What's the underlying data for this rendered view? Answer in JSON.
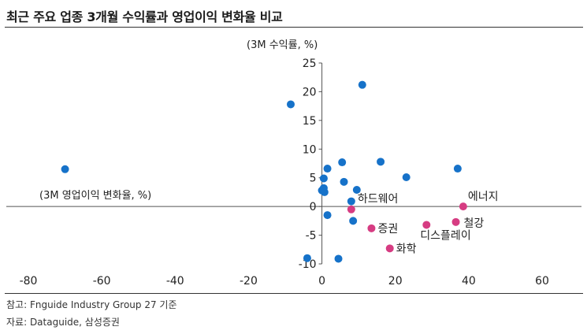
{
  "title": "최근 주요 업종 3개월 수익률과 영업이익 변화율 비교",
  "footnote": "참고: Fnguide Industry Group 27 기준",
  "source": "자료: Dataguide, 삼성증권",
  "colors": {
    "blue": "#1672c9",
    "pink": "#d63c82",
    "axis": "#555555"
  },
  "chart_data": {
    "type": "scatter",
    "xlabel": "(3M 영업이익 변화율, %)",
    "ylabel": "(3M 수익률, %)",
    "xlim": [
      -80,
      60
    ],
    "ylim": [
      -10,
      25
    ],
    "x_ticks": [
      -80,
      -60,
      -40,
      -20,
      0,
      20,
      40,
      60
    ],
    "y_ticks": [
      -10,
      -5,
      0,
      5,
      10,
      15,
      20,
      25
    ],
    "grid": false,
    "series": [
      {
        "color": "#1672c9",
        "points": [
          {
            "x": -70,
            "y": 6.5
          },
          {
            "x": -8.5,
            "y": 17.8
          },
          {
            "x": 11,
            "y": 21.2
          },
          {
            "x": 16,
            "y": 7.8
          },
          {
            "x": 5.5,
            "y": 7.7
          },
          {
            "x": 1.5,
            "y": 6.6
          },
          {
            "x": 0.5,
            "y": 4.9
          },
          {
            "x": 6,
            "y": 4.3
          },
          {
            "x": 23,
            "y": 5.1
          },
          {
            "x": 37,
            "y": 6.6
          },
          {
            "x": 9.5,
            "y": 2.9
          },
          {
            "x": 0.5,
            "y": 3.2
          },
          {
            "x": 0,
            "y": 2.8
          },
          {
            "x": 0.7,
            "y": 2.5
          },
          {
            "x": 8,
            "y": 0.9
          },
          {
            "x": 1.5,
            "y": -1.5
          },
          {
            "x": 8.5,
            "y": -2.5
          },
          {
            "x": -4,
            "y": -9.0
          },
          {
            "x": 4.5,
            "y": -9.1
          }
        ]
      },
      {
        "color": "#d63c82",
        "points": [
          {
            "x": 38.5,
            "y": 0.0,
            "label": "에너지"
          },
          {
            "x": 8,
            "y": -0.5,
            "label": "하드웨어"
          },
          {
            "x": 36.5,
            "y": -2.7,
            "label": "철강"
          },
          {
            "x": 28.5,
            "y": -3.2,
            "label": "디스플레이"
          },
          {
            "x": 13.5,
            "y": -3.8,
            "label": "증권"
          },
          {
            "x": 18.5,
            "y": -7.3,
            "label": "화학"
          }
        ]
      }
    ]
  }
}
